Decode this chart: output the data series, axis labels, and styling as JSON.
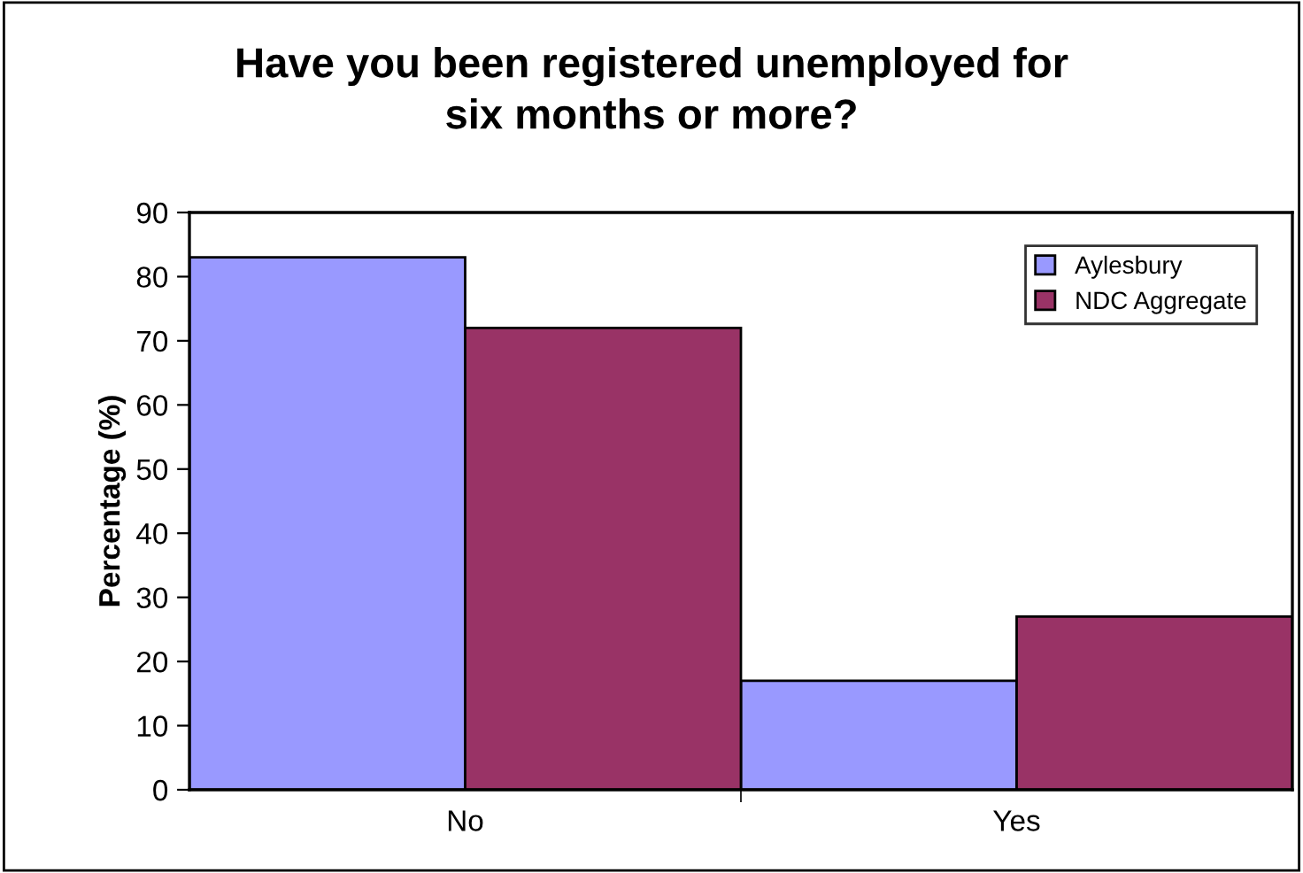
{
  "chart_data": {
    "type": "bar",
    "title": "Have you been registered unemployed for\nsix months or more?",
    "ylabel": "Percentage (%)",
    "categories": [
      "No",
      "Yes"
    ],
    "series": [
      {
        "name": "Aylesbury",
        "color": "#9999ff",
        "values": [
          83,
          17
        ]
      },
      {
        "name": "NDC Aggregate",
        "color": "#993366",
        "values": [
          72,
          27
        ]
      }
    ],
    "ylim": [
      0,
      90
    ],
    "yticks": [
      0,
      10,
      20,
      30,
      40,
      50,
      60,
      70,
      80,
      90
    ],
    "grid": false,
    "legend": "top right"
  }
}
